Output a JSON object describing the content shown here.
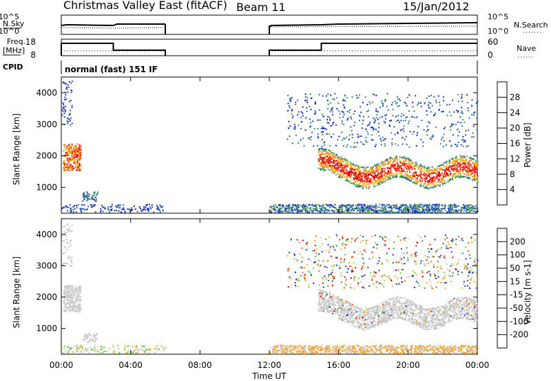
{
  "header": {
    "station": "Christmas Valley East (fitACF)",
    "beam": "Beam 11",
    "date": "15/Jan/2012"
  },
  "panel_labels": {
    "nsky": "N.Sky",
    "nsky_tick_top": "10^5",
    "nsky_tick_bottom": "10^0",
    "nsearch": "N.Search",
    "freq_a": "Freq.",
    "freq_b": "[MHz]",
    "freq_tick_top": "18",
    "freq_tick_bottom": "8",
    "nave": "Nave",
    "nave_tick_top": "60",
    "nave_tick_bottom": "0",
    "cpid": "CPID",
    "cpid_value": "normal (fast) 151 IF"
  },
  "colors": {
    "power_scale": [
      "#0a1fd8",
      "#2b4fb4",
      "#2f6b8a",
      "#3b8c6e",
      "#5fb35a",
      "#f0c020",
      "#f08a10",
      "#ff3a10",
      "#e00000"
    ],
    "velocity_scale": [
      "#e00000",
      "#ff5a00",
      "#ff9a20",
      "#f0b040",
      "#c8c8c8",
      "#6fcf3a",
      "#2e8b57",
      "#2b3fb0",
      "#1020c0"
    ]
  },
  "chart_data": [
    {
      "type": "heatmap",
      "title": "",
      "xlabel": "",
      "ylabel": "Slant Range [km]",
      "x_ticks": [
        "00:00",
        "04:00",
        "08:00",
        "12:00",
        "16:00",
        "20:00",
        "00:00"
      ],
      "xlim_hours": [
        0,
        24
      ],
      "ylim_km": [
        180,
        4500
      ],
      "y_ticks": [
        "1000",
        "2000",
        "3000",
        "4000"
      ],
      "colorbar": {
        "label": "Power [dB]",
        "ticks": [
          "4",
          "8",
          "12",
          "16",
          "20",
          "24",
          "28"
        ],
        "range": [
          0,
          30
        ]
      },
      "data_gap_hours": [
        6,
        12
      ]
    },
    {
      "type": "heatmap",
      "title": "",
      "xlabel": "Time UT",
      "ylabel": "Slant Range [km]",
      "x_ticks": [
        "00:00",
        "04:00",
        "08:00",
        "12:00",
        "16:00",
        "20:00",
        "00:00"
      ],
      "xlim_hours": [
        0,
        24
      ],
      "ylim_km": [
        180,
        4500
      ],
      "y_ticks": [
        "1000",
        "2000",
        "3000",
        "4000"
      ],
      "colorbar": {
        "label": "Velocity [m s-1]",
        "ticks": [
          "200",
          "100",
          "50",
          "15",
          "-15",
          "-50",
          "-100",
          "-200"
        ],
        "range": [
          -250,
          250
        ]
      },
      "data_gap_hours": [
        6,
        12
      ]
    }
  ]
}
